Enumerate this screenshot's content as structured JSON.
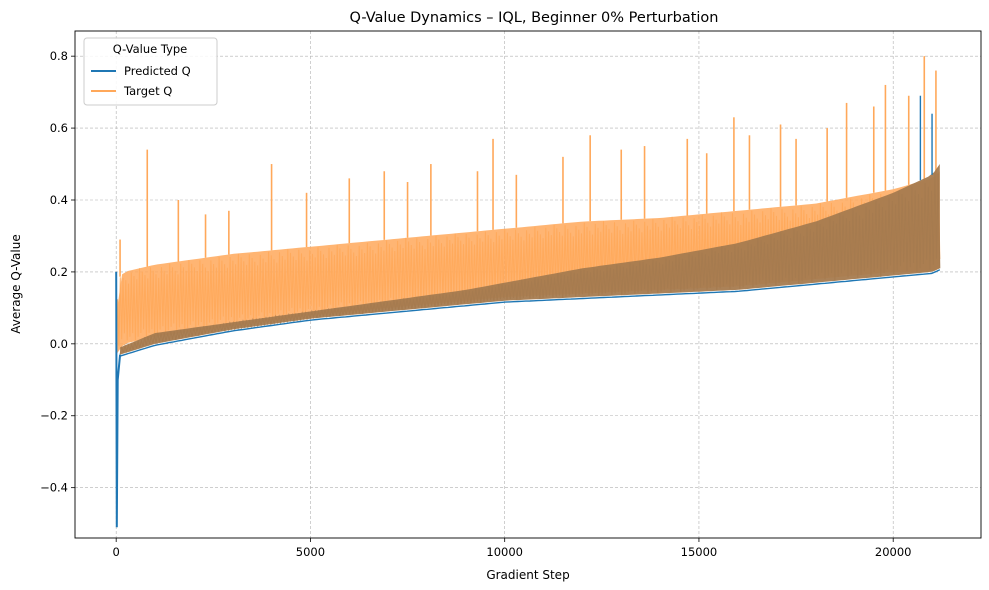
{
  "chart_data": {
    "type": "line",
    "title": "Q-Value Dynamics – IQL, Beginner 0% Perturbation",
    "xlabel": "Gradient Step",
    "ylabel": "Average Q-Value",
    "xlim": [
      -1060,
      22260
    ],
    "ylim": [
      -0.54,
      0.87
    ],
    "xticks": [
      0,
      5000,
      10000,
      15000,
      20000
    ],
    "xtick_labels": [
      "0",
      "5000",
      "10000",
      "15000",
      "20000"
    ],
    "yticks": [
      -0.4,
      -0.2,
      0.0,
      0.2,
      0.4,
      0.6,
      0.8
    ],
    "ytick_labels": [
      "−0.4",
      "−0.2",
      "0.0",
      "0.2",
      "0.4",
      "0.6",
      "0.8"
    ],
    "grid": true,
    "legend": {
      "title": "Q-Value Type",
      "placement": "top-left",
      "entries": [
        "Predicted Q",
        "Target Q"
      ]
    },
    "series": [
      {
        "name": "Target Q",
        "color": "#ffa85a",
        "x_range": [
          0,
          21200
        ],
        "envelope": {
          "x": [
            0,
            50,
            200,
            1000,
            3000,
            5000,
            7000,
            9000,
            10000,
            12000,
            14000,
            16000,
            17000,
            18000,
            19000,
            20000,
            21000,
            21200
          ],
          "low": [
            -0.03,
            -0.02,
            0.0,
            0.02,
            0.05,
            0.08,
            0.1,
            0.12,
            0.13,
            0.14,
            0.15,
            0.16,
            0.17,
            0.18,
            0.19,
            0.2,
            0.2,
            0.21
          ],
          "high": [
            0.08,
            0.18,
            0.2,
            0.22,
            0.25,
            0.27,
            0.29,
            0.31,
            0.32,
            0.34,
            0.35,
            0.37,
            0.38,
            0.39,
            0.41,
            0.43,
            0.46,
            0.48
          ]
        },
        "spikes": [
          [
            100,
            0.29
          ],
          [
            800,
            0.54
          ],
          [
            1600,
            0.4
          ],
          [
            2300,
            0.36
          ],
          [
            2900,
            0.37
          ],
          [
            4000,
            0.5
          ],
          [
            4900,
            0.42
          ],
          [
            6000,
            0.46
          ],
          [
            6900,
            0.48
          ],
          [
            7500,
            0.45
          ],
          [
            8100,
            0.5
          ],
          [
            9300,
            0.48
          ],
          [
            9700,
            0.57
          ],
          [
            10300,
            0.47
          ],
          [
            11500,
            0.52
          ],
          [
            12200,
            0.58
          ],
          [
            13000,
            0.54
          ],
          [
            13600,
            0.55
          ],
          [
            14700,
            0.57
          ],
          [
            15200,
            0.53
          ],
          [
            15900,
            0.63
          ],
          [
            16300,
            0.58
          ],
          [
            17100,
            0.61
          ],
          [
            17500,
            0.57
          ],
          [
            18300,
            0.6
          ],
          [
            18800,
            0.67
          ],
          [
            19500,
            0.66
          ],
          [
            19800,
            0.72
          ],
          [
            20400,
            0.69
          ],
          [
            20800,
            0.8
          ],
          [
            21100,
            0.76
          ]
        ]
      },
      {
        "name": "Predicted Q",
        "color": "#1f77b4",
        "overlap_color": "#a67b4f",
        "x_range": [
          0,
          21200
        ],
        "initial": [
          [
            0,
            0.2
          ],
          [
            15,
            -0.51
          ],
          [
            40,
            -0.1
          ],
          [
            100,
            -0.03
          ]
        ],
        "envelope": {
          "x": [
            100,
            1000,
            3000,
            5000,
            7000,
            9000,
            10000,
            12000,
            14000,
            16000,
            17000,
            18000,
            19000,
            20000,
            21000,
            21200
          ],
          "low": [
            -0.03,
            0.0,
            0.04,
            0.07,
            0.09,
            0.11,
            0.12,
            0.13,
            0.14,
            0.15,
            0.16,
            0.17,
            0.18,
            0.19,
            0.2,
            0.21
          ],
          "high": [
            -0.01,
            0.03,
            0.06,
            0.09,
            0.12,
            0.15,
            0.17,
            0.21,
            0.24,
            0.28,
            0.31,
            0.34,
            0.38,
            0.42,
            0.47,
            0.5
          ]
        },
        "spikes": [
          [
            20700,
            0.69
          ],
          [
            21000,
            0.64
          ]
        ]
      }
    ]
  }
}
